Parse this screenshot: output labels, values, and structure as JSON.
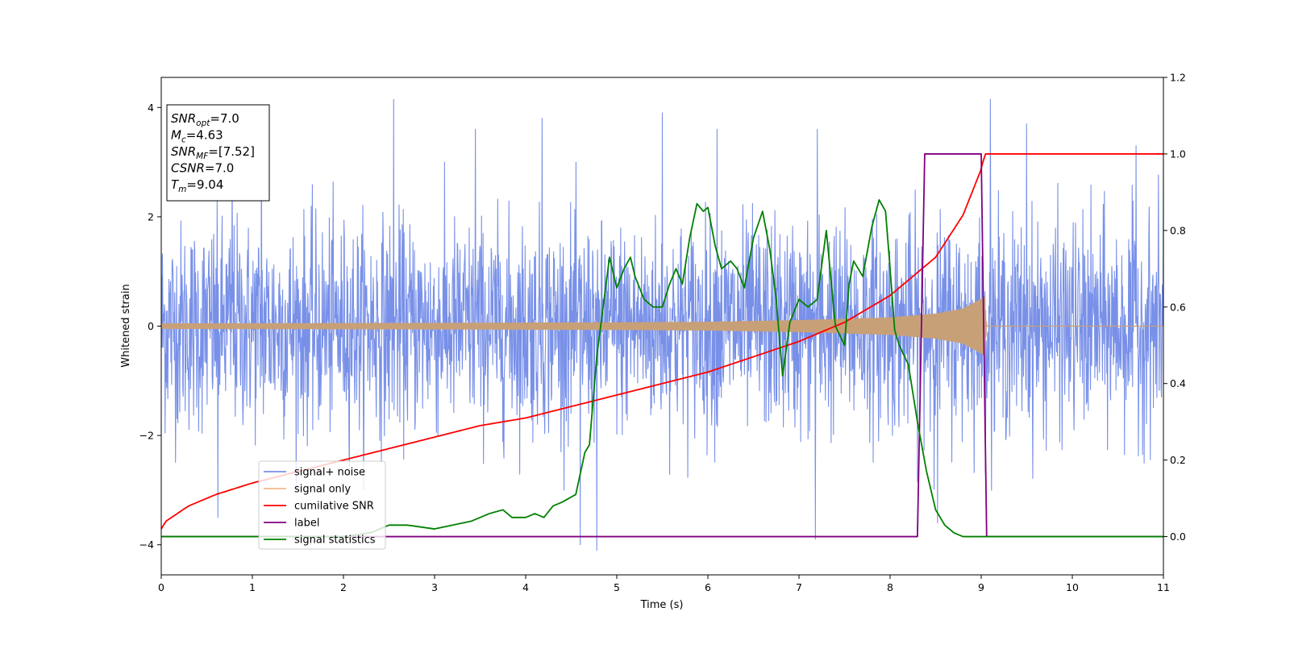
{
  "chart_data": {
    "type": "line",
    "xlabel": "Time (s)",
    "ylabel": "Whitened strain",
    "xlim": [
      0,
      11
    ],
    "ylim": [
      -4.55,
      4.55
    ],
    "y2lim": [
      -0.1,
      1.2
    ],
    "xticks": [
      0,
      1,
      2,
      3,
      4,
      5,
      6,
      7,
      8,
      9,
      10,
      11
    ],
    "yticks": [
      -4,
      -2,
      0,
      2,
      4
    ],
    "y2ticks": [
      0.0,
      0.2,
      0.4,
      0.6,
      0.8,
      1.0,
      1.2
    ],
    "info_box": [
      {
        "main": "SNR",
        "sub": "opt",
        "rest": "=7.0"
      },
      {
        "main": "M",
        "sub": "c",
        "rest": "=4.63"
      },
      {
        "main": "SNR",
        "sub": "MF",
        "rest": "=[7.52]"
      },
      {
        "main": "CSNR",
        "sub": "",
        "rest": "=7.0"
      },
      {
        "main": "T",
        "sub": "m",
        "rest": "=9.04"
      }
    ],
    "legend": {
      "position": "lower-left",
      "entries": [
        {
          "label": "signal+ noise",
          "color": "#7890e8"
        },
        {
          "label": "signal only",
          "color": "#f5b88a"
        },
        {
          "label": "cumilative SNR",
          "color": "#ff0000"
        },
        {
          "label": "label",
          "color": "#800080"
        },
        {
          "label": "signal statistics",
          "color": "#008000"
        }
      ]
    },
    "series": [
      {
        "name": "signal+ noise",
        "axis": "left",
        "color": "#7890e8",
        "style": "noise",
        "envelope": 1.8,
        "peaks": [
          [
            0.62,
            -3.5
          ],
          [
            0.78,
            3.0
          ],
          [
            1.1,
            4.0
          ],
          [
            2.55,
            4.15
          ],
          [
            3.45,
            3.6
          ],
          [
            4.18,
            3.8
          ],
          [
            4.6,
            -4.0
          ],
          [
            4.78,
            -4.1
          ],
          [
            5.5,
            3.9
          ],
          [
            6.1,
            3.6
          ],
          [
            7.2,
            3.6
          ],
          [
            7.18,
            -3.9
          ],
          [
            8.52,
            -3.6
          ],
          [
            9.1,
            4.15
          ],
          [
            9.5,
            3.7
          ],
          [
            10.7,
            3.3
          ],
          [
            11.0,
            3.2
          ]
        ]
      },
      {
        "name": "signal only",
        "axis": "left",
        "color": "#c8a078",
        "style": "chirp",
        "amplitude": [
          [
            0,
            0.05
          ],
          [
            3,
            0.06
          ],
          [
            5,
            0.07
          ],
          [
            6,
            0.08
          ],
          [
            7,
            0.11
          ],
          [
            8,
            0.16
          ],
          [
            8.5,
            0.23
          ],
          [
            8.8,
            0.32
          ],
          [
            9.0,
            0.5
          ],
          [
            9.04,
            0.55
          ],
          [
            9.06,
            0.0
          ],
          [
            11,
            0.0
          ]
        ]
      },
      {
        "name": "cumilative SNR",
        "axis": "right",
        "color": "#ff0000",
        "style": "line",
        "x": [
          0,
          0.05,
          0.3,
          0.6,
          1,
          1.5,
          2,
          2.5,
          3,
          3.5,
          4,
          4.5,
          5,
          5.5,
          6,
          6.5,
          7,
          7.5,
          8,
          8.5,
          8.8,
          9.0,
          9.04,
          11
        ],
        "y": [
          0.02,
          0.04,
          0.08,
          0.11,
          0.14,
          0.17,
          0.2,
          0.23,
          0.26,
          0.29,
          0.31,
          0.34,
          0.37,
          0.4,
          0.43,
          0.47,
          0.51,
          0.56,
          0.63,
          0.73,
          0.84,
          0.96,
          1.0,
          1.0
        ]
      },
      {
        "name": "label",
        "axis": "right",
        "color": "#800080",
        "style": "line",
        "x": [
          0,
          8.3,
          8.38,
          9.0,
          9.06,
          11
        ],
        "y": [
          0.0,
          0.0,
          1.0,
          1.0,
          0.0,
          0.0
        ]
      },
      {
        "name": "signal statistics",
        "axis": "right",
        "color": "#008000",
        "style": "line",
        "x": [
          0,
          0.4,
          1.0,
          2.0,
          2.3,
          2.5,
          2.7,
          3.0,
          3.2,
          3.4,
          3.6,
          3.75,
          3.85,
          4.0,
          4.1,
          4.2,
          4.3,
          4.4,
          4.55,
          4.65,
          4.7,
          4.78,
          4.85,
          4.92,
          5.0,
          5.08,
          5.15,
          5.2,
          5.3,
          5.4,
          5.5,
          5.58,
          5.65,
          5.72,
          5.8,
          5.88,
          5.95,
          6.0,
          6.08,
          6.15,
          6.25,
          6.32,
          6.4,
          6.5,
          6.6,
          6.68,
          6.75,
          6.82,
          6.9,
          7.0,
          7.1,
          7.2,
          7.3,
          7.4,
          7.5,
          7.55,
          7.6,
          7.7,
          7.8,
          7.88,
          7.95,
          8.0,
          8.05,
          8.1,
          8.2,
          8.3,
          8.4,
          8.5,
          8.6,
          8.7,
          8.8,
          9.0,
          9.5,
          10.0,
          11.0
        ],
        "y": [
          0.0,
          0.0,
          0.0,
          0.0,
          0.01,
          0.03,
          0.03,
          0.02,
          0.03,
          0.04,
          0.06,
          0.07,
          0.05,
          0.05,
          0.06,
          0.05,
          0.08,
          0.09,
          0.11,
          0.22,
          0.24,
          0.47,
          0.6,
          0.73,
          0.65,
          0.7,
          0.73,
          0.68,
          0.62,
          0.6,
          0.6,
          0.66,
          0.7,
          0.66,
          0.78,
          0.87,
          0.85,
          0.86,
          0.76,
          0.7,
          0.72,
          0.7,
          0.65,
          0.78,
          0.85,
          0.75,
          0.62,
          0.42,
          0.56,
          0.62,
          0.6,
          0.62,
          0.8,
          0.55,
          0.5,
          0.66,
          0.72,
          0.68,
          0.81,
          0.88,
          0.85,
          0.7,
          0.54,
          0.5,
          0.45,
          0.3,
          0.17,
          0.07,
          0.03,
          0.01,
          0.0,
          0.0,
          0.0,
          0.0,
          0.0
        ]
      }
    ]
  }
}
